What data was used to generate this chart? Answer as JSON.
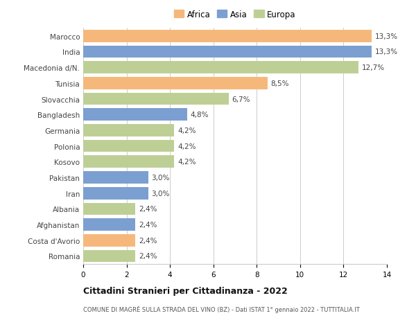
{
  "categories": [
    "Romania",
    "Costa d'Avorio",
    "Afghanistan",
    "Albania",
    "Iran",
    "Pakistan",
    "Kosovo",
    "Polonia",
    "Germania",
    "Bangladesh",
    "Slovacchia",
    "Tunisia",
    "Macedonia d/N.",
    "India",
    "Marocco"
  ],
  "values": [
    2.4,
    2.4,
    2.4,
    2.4,
    3.0,
    3.0,
    4.2,
    4.2,
    4.2,
    4.8,
    6.7,
    8.5,
    12.7,
    13.3,
    13.3
  ],
  "continents": [
    "Europa",
    "Africa",
    "Asia",
    "Europa",
    "Asia",
    "Asia",
    "Europa",
    "Europa",
    "Europa",
    "Asia",
    "Europa",
    "Africa",
    "Europa",
    "Asia",
    "Africa"
  ],
  "colors": {
    "Africa": "#F5B87A",
    "Asia": "#7B9FD0",
    "Europa": "#BECF96"
  },
  "labels": [
    "2,4%",
    "2,4%",
    "2,4%",
    "2,4%",
    "3,0%",
    "3,0%",
    "4,2%",
    "4,2%",
    "4,2%",
    "4,8%",
    "6,7%",
    "8,5%",
    "12,7%",
    "13,3%",
    "13,3%"
  ],
  "xlim": [
    0,
    14
  ],
  "xticks": [
    0,
    2,
    4,
    6,
    8,
    10,
    12,
    14
  ],
  "title": "Cittadini Stranieri per Cittadinanza - 2022",
  "subtitle": "COMUNE DI MAGRÈ SULLA STRADA DEL VINO (BZ) - Dati ISTAT 1° gennaio 2022 - TUTTITALIA.IT",
  "legend_labels": [
    "Africa",
    "Asia",
    "Europa"
  ],
  "background_color": "#ffffff",
  "grid_color": "#cccccc",
  "bar_height": 0.78,
  "label_fontsize": 7.5,
  "tick_fontsize": 7.5,
  "legend_fontsize": 8.5,
  "title_fontsize": 9.0,
  "subtitle_fontsize": 6.0
}
